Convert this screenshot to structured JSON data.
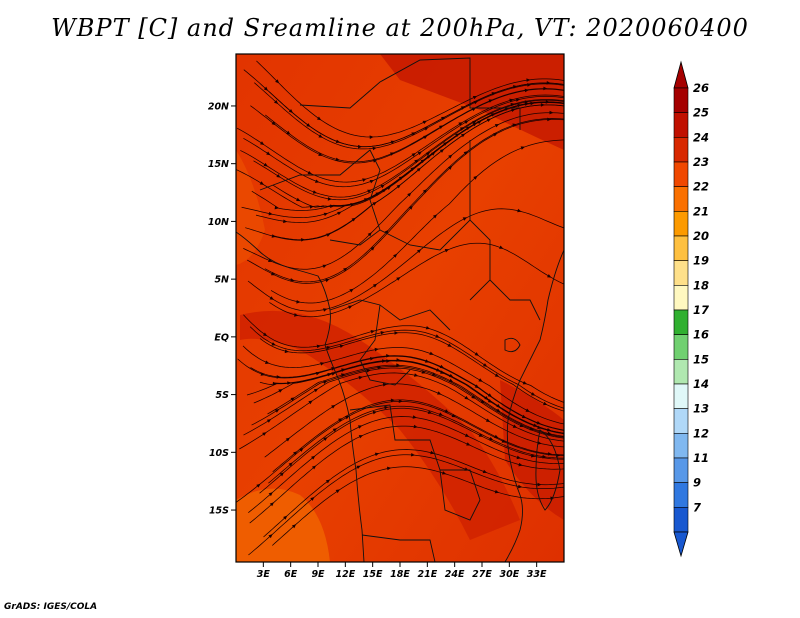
{
  "title": "WBPT [C] and Sreamline at 200hPa, VT: 2020060400",
  "footer": "GrADS: IGES/COLA",
  "map": {
    "lon_range": [
      0,
      36
    ],
    "lat_range": [
      -19.5,
      24.5
    ],
    "lat_ticks": [
      {
        "value": 20,
        "label": "20N"
      },
      {
        "value": 15,
        "label": "15N"
      },
      {
        "value": 10,
        "label": "10N"
      },
      {
        "value": 5,
        "label": "5N"
      },
      {
        "value": 0,
        "label": "EQ"
      },
      {
        "value": -5,
        "label": "5S"
      },
      {
        "value": -10,
        "label": "10S"
      },
      {
        "value": -15,
        "label": "15S"
      }
    ],
    "lon_ticks": [
      {
        "value": 3,
        "label": "3E"
      },
      {
        "value": 6,
        "label": "6E"
      },
      {
        "value": 9,
        "label": "9E"
      },
      {
        "value": 12,
        "label": "12E"
      },
      {
        "value": 15,
        "label": "15E"
      },
      {
        "value": 18,
        "label": "18E"
      },
      {
        "value": 21,
        "label": "21E"
      },
      {
        "value": 24,
        "label": "24E"
      },
      {
        "value": 27,
        "label": "27E"
      },
      {
        "value": 30,
        "label": "30E"
      },
      {
        "value": 33,
        "label": "33E"
      }
    ]
  },
  "colorbar": {
    "levels": [
      {
        "label": "26",
        "color": "#a50000"
      },
      {
        "label": "25",
        "color": "#c01000"
      },
      {
        "label": "24",
        "color": "#d82800"
      },
      {
        "label": "23",
        "color": "#f04800"
      },
      {
        "label": "22",
        "color": "#fa7000"
      },
      {
        "label": "21",
        "color": "#fc9a00"
      },
      {
        "label": "20",
        "color": "#fec040"
      },
      {
        "label": "19",
        "color": "#fee08a"
      },
      {
        "label": "18",
        "color": "#fff8c0"
      },
      {
        "label": "17",
        "color": "#30b030"
      },
      {
        "label": "16",
        "color": "#70d070"
      },
      {
        "label": "15",
        "color": "#b0e8b0"
      },
      {
        "label": "14",
        "color": "#e0f8f8"
      },
      {
        "label": "13",
        "color": "#b0d8f8"
      },
      {
        "label": "12",
        "color": "#80b8f0"
      },
      {
        "label": "11",
        "color": "#5898e8"
      },
      {
        "label": "9",
        "color": "#3078e0"
      },
      {
        "label": "7",
        "color": "#1858d0"
      }
    ]
  }
}
